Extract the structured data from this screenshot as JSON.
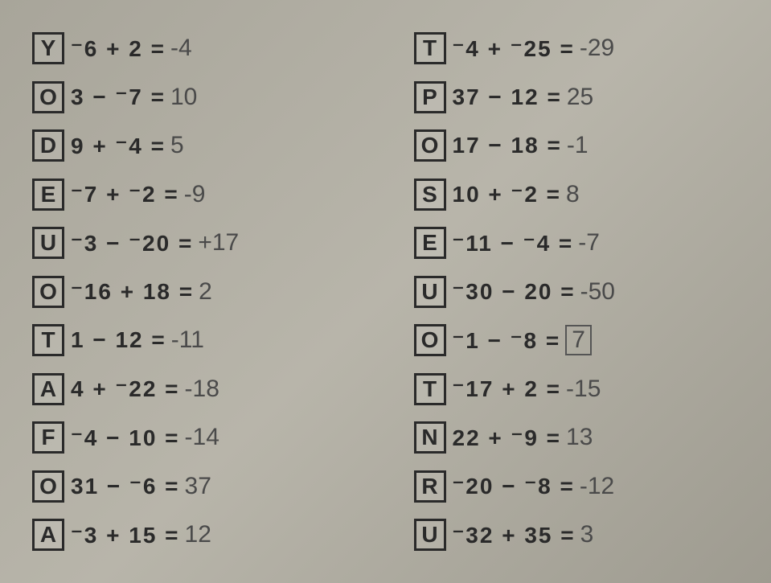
{
  "left": [
    {
      "letter": "Y",
      "equation": "⁻6 + 2 =",
      "answer": "-4"
    },
    {
      "letter": "O",
      "equation": "3 − ⁻7 =",
      "answer": "10"
    },
    {
      "letter": "D",
      "equation": "9 + ⁻4 =",
      "answer": "5"
    },
    {
      "letter": "E",
      "equation": "⁻7 + ⁻2 =",
      "answer": "-9"
    },
    {
      "letter": "U",
      "equation": "⁻3 − ⁻20 =",
      "answer": "+17"
    },
    {
      "letter": "O",
      "equation": "⁻16 + 18 =",
      "answer": "2"
    },
    {
      "letter": "T",
      "equation": "1 − 12 =",
      "answer": "-11"
    },
    {
      "letter": "A",
      "equation": "4 + ⁻22 =",
      "answer": "-18"
    },
    {
      "letter": "F",
      "equation": "⁻4 − 10 =",
      "answer": "-14"
    },
    {
      "letter": "O",
      "equation": "31 − ⁻6 =",
      "answer": "37"
    },
    {
      "letter": "A",
      "equation": "⁻3 + 15 =",
      "answer": "12"
    }
  ],
  "right": [
    {
      "letter": "T",
      "equation": "⁻4 + ⁻25 =",
      "answer": "-29"
    },
    {
      "letter": "P",
      "equation": "37 − 12 =",
      "answer": "25"
    },
    {
      "letter": "O",
      "equation": "17 − 18 =",
      "answer": "-1"
    },
    {
      "letter": "S",
      "equation": "10 + ⁻2 =",
      "answer": "8"
    },
    {
      "letter": "E",
      "equation": "⁻11 − ⁻4 =",
      "answer": "-7"
    },
    {
      "letter": "U",
      "equation": "⁻30 − 20 =",
      "answer": "-50"
    },
    {
      "letter": "O",
      "equation": "⁻1 − ⁻8 =",
      "answer": "7",
      "boxed": true
    },
    {
      "letter": "T",
      "equation": "⁻17 + 2 =",
      "answer": "-15"
    },
    {
      "letter": "N",
      "equation": "22 + ⁻9 =",
      "answer": "13"
    },
    {
      "letter": "R",
      "equation": "⁻20 − ⁻8 =",
      "answer": "-12"
    },
    {
      "letter": "U",
      "equation": "⁻32 + 35 =",
      "answer": "3"
    }
  ]
}
